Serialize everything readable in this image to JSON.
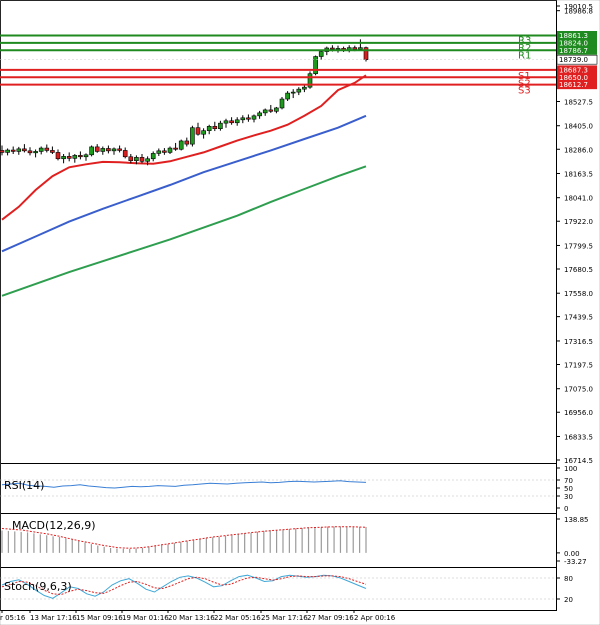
{
  "chart_data": [
    {
      "type": "candlestick",
      "panel": "price",
      "y_axis_ticks": [
        "19010.5",
        "18986.8",
        "18861.3",
        "18824.0",
        "18786.7",
        "18739.0",
        "18687.3",
        "18650.0",
        "18612.7",
        "18527.5",
        "18405.0",
        "18286.0",
        "18163.5",
        "18041.0",
        "17922.0",
        "17799.5",
        "17680.5",
        "17558.0",
        "17439.5",
        "17316.5",
        "17197.5",
        "17075.0",
        "16956.0",
        "16833.5",
        "16714.5"
      ],
      "current_price": "18739.0",
      "levels": [
        {
          "label": "R3",
          "value": "18861.3",
          "color": "#1f8a1f"
        },
        {
          "label": "R2",
          "value": "18824.0",
          "color": "#1f8a1f"
        },
        {
          "label": "R1",
          "value": "18786.7",
          "color": "#1f8a1f"
        },
        {
          "label": "S1",
          "value": "18687.3",
          "color": "#e02020"
        },
        {
          "label": "S2",
          "value": "18650.0",
          "color": "#e02020"
        },
        {
          "label": "S3",
          "value": "18612.7",
          "color": "#e02020"
        }
      ],
      "candles": [
        [
          18280,
          18305,
          18255,
          18270
        ],
        [
          18270,
          18290,
          18255,
          18282
        ],
        [
          18282,
          18300,
          18262,
          18275
        ],
        [
          18275,
          18298,
          18258,
          18288
        ],
        [
          18288,
          18312,
          18270,
          18278
        ],
        [
          18278,
          18296,
          18255,
          18268
        ],
        [
          18268,
          18285,
          18245,
          18275
        ],
        [
          18275,
          18300,
          18260,
          18292
        ],
        [
          18292,
          18310,
          18270,
          18280
        ],
        [
          18280,
          18300,
          18262,
          18270
        ],
        [
          18270,
          18285,
          18230,
          18238
        ],
        [
          18238,
          18262,
          18215,
          18250
        ],
        [
          18250,
          18270,
          18225,
          18240
        ],
        [
          18240,
          18262,
          18218,
          18255
        ],
        [
          18255,
          18275,
          18235,
          18248
        ],
        [
          18248,
          18265,
          18228,
          18258
        ],
        [
          18258,
          18305,
          18250,
          18298
        ],
        [
          18298,
          18312,
          18268,
          18275
        ],
        [
          18275,
          18300,
          18258,
          18290
        ],
        [
          18290,
          18305,
          18265,
          18278
        ],
        [
          18278,
          18295,
          18258,
          18288
        ],
        [
          18288,
          18305,
          18270,
          18280
        ],
        [
          18280,
          18295,
          18240,
          18248
        ],
        [
          18248,
          18262,
          18215,
          18228
        ],
        [
          18228,
          18255,
          18210,
          18245
        ],
        [
          18245,
          18262,
          18215,
          18225
        ],
        [
          18225,
          18250,
          18205,
          18238
        ],
        [
          18238,
          18275,
          18225,
          18265
        ],
        [
          18265,
          18290,
          18252,
          18278
        ],
        [
          18278,
          18292,
          18258,
          18270
        ],
        [
          18270,
          18300,
          18262,
          18292
        ],
        [
          18292,
          18318,
          18278,
          18286
        ],
        [
          18286,
          18335,
          18280,
          18328
        ],
        [
          18328,
          18345,
          18300,
          18312
        ],
        [
          18312,
          18405,
          18300,
          18395
        ],
        [
          18395,
          18420,
          18355,
          18362
        ],
        [
          18362,
          18392,
          18340,
          18380
        ],
        [
          18380,
          18410,
          18362,
          18402
        ],
        [
          18402,
          18425,
          18378,
          18390
        ],
        [
          18390,
          18430,
          18380,
          18418
        ],
        [
          18418,
          18440,
          18395,
          18430
        ],
        [
          18430,
          18448,
          18410,
          18420
        ],
        [
          18420,
          18448,
          18405,
          18435
        ],
        [
          18435,
          18458,
          18418,
          18445
        ],
        [
          18445,
          18462,
          18425,
          18438
        ],
        [
          18438,
          18462,
          18422,
          18455
        ],
        [
          18455,
          18480,
          18440,
          18470
        ],
        [
          18470,
          18492,
          18455,
          18485
        ],
        [
          18485,
          18510,
          18470,
          18478
        ],
        [
          18478,
          18500,
          18468,
          18495
        ],
        [
          18495,
          18550,
          18488,
          18540
        ],
        [
          18540,
          18580,
          18530,
          18570
        ],
        [
          18570,
          18590,
          18545,
          18575
        ],
        [
          18575,
          18600,
          18560,
          18590
        ],
        [
          18590,
          18610,
          18575,
          18600
        ],
        [
          18600,
          18680,
          18592,
          18668
        ],
        [
          18668,
          18760,
          18660,
          18755
        ],
        [
          18755,
          18790,
          18740,
          18780
        ],
        [
          18780,
          18805,
          18762,
          18798
        ],
        [
          18798,
          18812,
          18780,
          18792
        ],
        [
          18792,
          18810,
          18775,
          18796
        ],
        [
          18796,
          18805,
          18778,
          18788
        ],
        [
          18788,
          18812,
          18776,
          18800
        ],
        [
          18800,
          18810,
          18782,
          18792
        ],
        [
          18792,
          18842,
          18784,
          18800
        ],
        [
          18800,
          18805,
          18730,
          18739
        ]
      ],
      "ma_red": [
        [
          0,
          17930
        ],
        [
          3,
          17995
        ],
        [
          6,
          18080
        ],
        [
          9,
          18150
        ],
        [
          12,
          18195
        ],
        [
          15,
          18210
        ],
        [
          18,
          18222
        ],
        [
          21,
          18220
        ],
        [
          24,
          18215
        ],
        [
          27,
          18213
        ],
        [
          30,
          18225
        ],
        [
          33,
          18248
        ],
        [
          36,
          18270
        ],
        [
          39,
          18300
        ],
        [
          42,
          18330
        ],
        [
          45,
          18356
        ],
        [
          48,
          18380
        ],
        [
          51,
          18410
        ],
        [
          54,
          18455
        ],
        [
          57,
          18505
        ],
        [
          60,
          18585
        ],
        [
          63,
          18622
        ],
        [
          65,
          18660
        ]
      ],
      "ma_blue": [
        [
          0,
          17770
        ],
        [
          6,
          17845
        ],
        [
          12,
          17920
        ],
        [
          18,
          17985
        ],
        [
          24,
          18045
        ],
        [
          30,
          18105
        ],
        [
          36,
          18170
        ],
        [
          42,
          18225
        ],
        [
          48,
          18280
        ],
        [
          54,
          18338
        ],
        [
          60,
          18395
        ],
        [
          65,
          18455
        ]
      ],
      "ma_green": [
        [
          0,
          17545
        ],
        [
          6,
          17605
        ],
        [
          12,
          17665
        ],
        [
          18,
          17720
        ],
        [
          24,
          17775
        ],
        [
          30,
          17830
        ],
        [
          36,
          17890
        ],
        [
          42,
          17950
        ],
        [
          48,
          18020
        ],
        [
          54,
          18085
        ],
        [
          60,
          18150
        ],
        [
          65,
          18200
        ]
      ]
    },
    {
      "type": "line",
      "panel": "rsi",
      "label": "RSI(14)",
      "y_axis_ticks": [
        "100",
        "70",
        "50",
        "30",
        "0"
      ],
      "values": [
        58,
        60,
        62,
        57,
        55,
        54,
        52,
        55,
        56,
        58,
        55,
        53,
        51,
        50,
        52,
        54,
        53,
        54,
        56,
        55,
        54,
        57,
        58,
        60,
        62,
        61,
        60,
        62,
        63,
        64,
        65,
        63,
        64,
        66,
        67,
        66,
        65,
        66,
        67,
        68,
        66,
        65,
        64
      ]
    },
    {
      "type": "bar",
      "panel": "macd",
      "label": "MACD(12,26,9)",
      "y_axis_ticks": [
        "138.85",
        "0.00",
        "-33.27"
      ],
      "histogram": [
        92,
        90,
        88,
        86,
        84,
        80,
        76,
        72,
        68,
        65,
        60,
        54,
        48,
        42,
        36,
        30,
        25,
        20,
        18,
        16,
        16,
        18,
        20,
        24,
        28,
        32,
        36,
        40,
        44,
        48,
        52,
        56,
        60,
        64,
        66,
        70,
        74,
        78,
        80,
        82,
        86,
        90,
        92,
        94,
        96,
        98,
        100,
        102,
        104,
        106,
        106,
        108,
        108,
        108,
        108,
        108,
        106,
        106
      ],
      "signal": [
        100,
        98,
        96,
        94,
        90,
        86,
        82,
        78,
        73,
        68,
        62,
        56,
        50,
        45,
        40,
        35,
        30,
        26,
        22,
        20,
        19,
        20,
        22,
        25,
        29,
        33,
        37,
        41,
        45,
        49,
        53,
        57,
        61,
        65,
        68,
        71,
        74,
        77,
        80,
        83,
        86,
        89,
        91,
        93,
        95,
        97,
        99,
        101,
        103,
        104,
        105,
        106,
        107,
        107,
        107,
        107,
        106,
        105
      ]
    },
    {
      "type": "line",
      "panel": "stoch",
      "label": "Stoch(9,6,3)",
      "y_axis_ticks": [
        "80",
        "20"
      ],
      "k": [
        60,
        70,
        75,
        62,
        45,
        30,
        22,
        38,
        55,
        50,
        35,
        28,
        40,
        60,
        72,
        78,
        65,
        48,
        40,
        55,
        70,
        82,
        86,
        80,
        68,
        55,
        58,
        72,
        84,
        88,
        80,
        70,
        72,
        84,
        88,
        85,
        82,
        84,
        88,
        86,
        80,
        70,
        60,
        50
      ],
      "d": [
        55,
        62,
        70,
        68,
        58,
        45,
        35,
        33,
        42,
        48,
        44,
        38,
        36,
        46,
        58,
        68,
        70,
        62,
        52,
        50,
        58,
        68,
        78,
        82,
        78,
        68,
        60,
        62,
        72,
        80,
        82,
        78,
        74,
        78,
        84,
        86,
        84,
        84,
        86,
        86,
        84,
        78,
        70,
        62
      ]
    }
  ],
  "x_axis_labels": [
    "r 05:16",
    "13 Mar 17:16",
    "15 Mar 09:16",
    "19 Mar 01:16",
    "20 Mar 13:16",
    "22 Mar 05:16",
    "25 Mar 17:16",
    "27 Mar 09:16",
    "2 Apr 00:16"
  ]
}
